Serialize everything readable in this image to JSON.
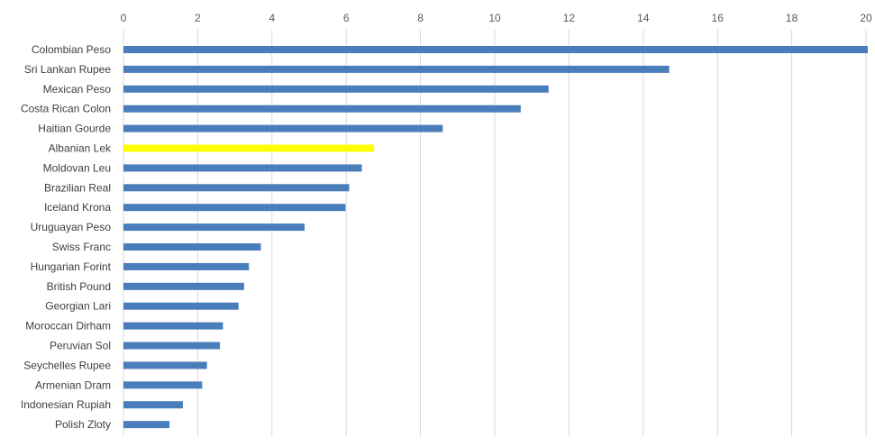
{
  "chart_data": {
    "type": "bar",
    "orientation": "horizontal",
    "title": "",
    "xlabel": "",
    "ylabel": "",
    "xlim": [
      0,
      20
    ],
    "x_ticks": [
      0,
      2,
      4,
      6,
      8,
      10,
      12,
      14,
      16,
      18,
      20
    ],
    "x_axis_position": "top",
    "grid": true,
    "legend": "none",
    "categories": [
      "Colombian Peso",
      "Sri Lankan Rupee",
      "Mexican Peso",
      "Costa Rican Colon",
      "Haitian Gourde",
      "Albanian Lek",
      "Moldovan Leu",
      "Brazilian Real",
      "Iceland Krona",
      "Uruguayan Peso",
      "Swiss Franc",
      "Hungarian Forint",
      "British Pound",
      "Georgian Lari",
      "Moroccan Dirham",
      "Peruvian Sol",
      "Seychelles Rupee",
      "Armenian Dram",
      "Indonesian Rupiah",
      "Polish Zloty"
    ],
    "values": [
      20.2,
      14.7,
      11.45,
      10.7,
      8.6,
      6.75,
      6.42,
      6.08,
      5.98,
      4.88,
      3.7,
      3.38,
      3.25,
      3.1,
      2.68,
      2.6,
      2.25,
      2.12,
      1.6,
      1.24
    ],
    "bar_color": "#4a7ebb",
    "highlight_category": "Albanian Lek",
    "highlight_color": "#ffff00",
    "grid_color": "#d9d9d9"
  }
}
